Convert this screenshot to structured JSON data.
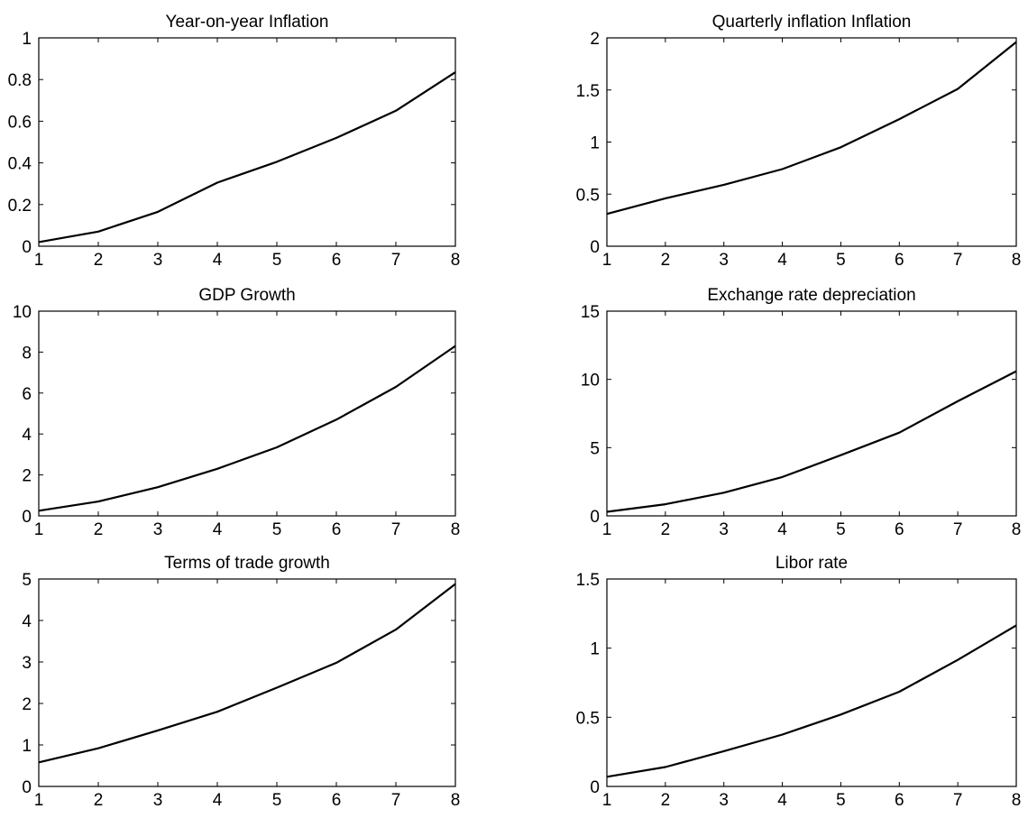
{
  "chart_data": [
    {
      "type": "line",
      "title": "Year-on-year Inflation",
      "x": [
        1,
        2,
        3,
        4,
        5,
        6,
        7,
        8
      ],
      "xlim": [
        1,
        8
      ],
      "ylim": [
        0,
        1
      ],
      "xticks": [
        "1",
        "2",
        "3",
        "4",
        "5",
        "6",
        "7",
        "8"
      ],
      "yticks": [
        "0",
        "0.2",
        "0.4",
        "0.6",
        "0.8",
        "1"
      ],
      "series": [
        {
          "values": [
            0.02,
            0.07,
            0.165,
            0.305,
            0.405,
            0.52,
            0.65,
            0.835
          ]
        }
      ]
    },
    {
      "type": "line",
      "title": "Quarterly inflation Inflation",
      "x": [
        1,
        2,
        3,
        4,
        5,
        6,
        7,
        8
      ],
      "xlim": [
        1,
        8
      ],
      "ylim": [
        0,
        2
      ],
      "xticks": [
        "1",
        "2",
        "3",
        "4",
        "5",
        "6",
        "7",
        "8"
      ],
      "yticks": [
        "0",
        "0.5",
        "1",
        "1.5",
        "2"
      ],
      "series": [
        {
          "values": [
            0.31,
            0.46,
            0.59,
            0.74,
            0.95,
            1.22,
            1.51,
            1.96
          ]
        }
      ]
    },
    {
      "type": "line",
      "title": "GDP Growth",
      "x": [
        1,
        2,
        3,
        4,
        5,
        6,
        7,
        8
      ],
      "xlim": [
        1,
        8
      ],
      "ylim": [
        0,
        10
      ],
      "xticks": [
        "1",
        "2",
        "3",
        "4",
        "5",
        "6",
        "7",
        "8"
      ],
      "yticks": [
        "0",
        "2",
        "4",
        "6",
        "8",
        "10"
      ],
      "series": [
        {
          "values": [
            0.25,
            0.7,
            1.4,
            2.3,
            3.35,
            4.7,
            6.3,
            8.3
          ]
        }
      ]
    },
    {
      "type": "line",
      "title": "Exchange rate depreciation",
      "x": [
        1,
        2,
        3,
        4,
        5,
        6,
        7,
        8
      ],
      "xlim": [
        1,
        8
      ],
      "ylim": [
        0,
        15
      ],
      "xticks": [
        "1",
        "2",
        "3",
        "4",
        "5",
        "6",
        "7",
        "8"
      ],
      "yticks": [
        "0",
        "5",
        "10",
        "15"
      ],
      "series": [
        {
          "values": [
            0.3,
            0.85,
            1.7,
            2.85,
            4.45,
            6.1,
            8.4,
            10.6
          ]
        }
      ]
    },
    {
      "type": "line",
      "title": "Terms of trade growth",
      "x": [
        1,
        2,
        3,
        4,
        5,
        6,
        7,
        8
      ],
      "xlim": [
        1,
        8
      ],
      "ylim": [
        0,
        5
      ],
      "xticks": [
        "1",
        "2",
        "3",
        "4",
        "5",
        "6",
        "7",
        "8"
      ],
      "yticks": [
        "0",
        "1",
        "2",
        "3",
        "4",
        "5"
      ],
      "series": [
        {
          "values": [
            0.58,
            0.92,
            1.35,
            1.8,
            2.38,
            2.98,
            3.78,
            4.88
          ]
        }
      ]
    },
    {
      "type": "line",
      "title": "Libor rate",
      "x": [
        1,
        2,
        3,
        4,
        5,
        6,
        7,
        8
      ],
      "xlim": [
        1,
        8
      ],
      "ylim": [
        0,
        1.5
      ],
      "xticks": [
        "1",
        "2",
        "3",
        "4",
        "5",
        "6",
        "7",
        "8"
      ],
      "yticks": [
        "0",
        "0.5",
        "1",
        "1.5"
      ],
      "series": [
        {
          "values": [
            0.07,
            0.14,
            0.255,
            0.375,
            0.52,
            0.685,
            0.915,
            1.165
          ]
        }
      ]
    }
  ]
}
